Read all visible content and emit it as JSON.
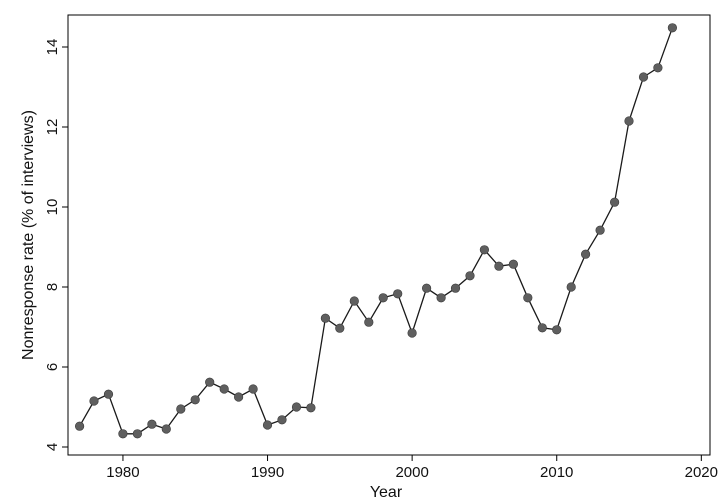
{
  "chart_data": {
    "type": "line",
    "title": "",
    "xlabel": "Year",
    "ylabel": "Nonresponse rate (% of interviews)",
    "xlim": [
      1976.2,
      2020.6
    ],
    "ylim": [
      3.8,
      14.8
    ],
    "xticks": [
      1980,
      1990,
      2000,
      2010,
      2020
    ],
    "yticks": [
      4,
      6,
      8,
      10,
      12,
      14
    ],
    "grid": false,
    "legend": "none",
    "colors": {
      "line": "#1a1a1a",
      "marker": "#5f5f5f",
      "axis": "#000000"
    },
    "series": [
      {
        "x": [
          1977,
          1978,
          1979,
          1980,
          1981,
          1982,
          1983,
          1984,
          1985,
          1986,
          1987,
          1988,
          1989,
          1990,
          1991,
          1992,
          1993,
          1994,
          1995,
          1996,
          1997,
          1998,
          1999,
          2000,
          2001,
          2002,
          2003,
          2004,
          2005,
          2006,
          2007,
          2008,
          2009,
          2010,
          2011,
          2012,
          2013,
          2014,
          2015,
          2016,
          2017,
          2018
        ],
        "y": [
          4.52,
          5.15,
          5.32,
          4.33,
          4.33,
          4.57,
          4.45,
          4.95,
          5.18,
          5.62,
          5.45,
          5.25,
          5.45,
          4.55,
          4.68,
          5.0,
          4.98,
          7.22,
          6.97,
          7.65,
          7.12,
          7.73,
          7.83,
          6.85,
          7.97,
          7.73,
          7.97,
          8.28,
          8.93,
          8.52,
          8.57,
          7.73,
          6.98,
          6.93,
          8.0,
          8.82,
          9.42,
          10.12,
          12.15,
          13.25,
          13.48,
          14.48
        ]
      }
    ]
  }
}
